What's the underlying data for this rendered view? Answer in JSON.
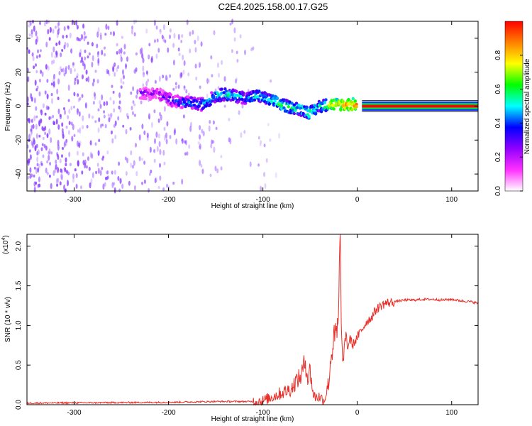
{
  "title": "C2E4.2025.158.00.17.G25",
  "chart_data": [
    {
      "type": "heatmap",
      "xlabel": "Height of straight line (km)",
      "ylabel": "Frequency (Hz)",
      "xlim": [
        -350,
        128
      ],
      "ylim": [
        -50,
        50
      ],
      "xticks": [
        -300,
        -200,
        -100,
        0,
        100
      ],
      "yticks": [
        -40,
        -20,
        0,
        20,
        40
      ],
      "grid": false,
      "colorbar": {
        "label": "Normalized spectral amplitude",
        "ticks": [
          0.0,
          0.2,
          0.4,
          0.6,
          0.8
        ],
        "range": [
          0,
          1
        ],
        "colormap": [
          "#ffffff",
          "#ff30ff",
          "#9000ff",
          "#0000ff",
          "#00ffff",
          "#00ff00",
          "#ffff00",
          "#ff8000",
          "#ff0000"
        ]
      },
      "noise_band": {
        "x_range": [
          -350,
          -40
        ],
        "density": "decreasing toward 0 km",
        "color": "#8a3cff"
      },
      "signal_track": [
        {
          "x": -230,
          "y": 8,
          "amp": 0.22
        },
        {
          "x": -210,
          "y": 7,
          "amp": 0.25
        },
        {
          "x": -195,
          "y": 3,
          "amp": 0.35
        },
        {
          "x": -180,
          "y": 2,
          "amp": 0.45
        },
        {
          "x": -165,
          "y": 1,
          "amp": 0.45
        },
        {
          "x": -150,
          "y": 6,
          "amp": 0.5
        },
        {
          "x": -140,
          "y": 7,
          "amp": 0.55
        },
        {
          "x": -120,
          "y": 5,
          "amp": 0.45
        },
        {
          "x": -105,
          "y": 6,
          "amp": 0.5
        },
        {
          "x": -95,
          "y": 4,
          "amp": 0.5
        },
        {
          "x": -85,
          "y": 2,
          "amp": 0.6
        },
        {
          "x": -75,
          "y": 0,
          "amp": 0.6
        },
        {
          "x": -60,
          "y": -2,
          "amp": 0.55
        },
        {
          "x": -50,
          "y": -4,
          "amp": 0.6
        },
        {
          "x": -40,
          "y": 0,
          "amp": 0.5
        },
        {
          "x": -30,
          "y": 1,
          "amp": 0.7
        },
        {
          "x": -15,
          "y": 1,
          "amp": 0.8
        },
        {
          "x": 0,
          "y": 1,
          "amp": 0.85
        }
      ],
      "steady_tone": {
        "x_range": [
          5,
          128
        ],
        "y": 0,
        "amp": 1.0
      }
    },
    {
      "type": "line",
      "xlabel": "Height of straight line (km)",
      "ylabel": "SNR (10 * v/v)",
      "multiplier_label": "(x10",
      "multiplier_exponent": "4",
      "multiplier_close": ")",
      "xlim": [
        -350,
        128
      ],
      "ylim": [
        0,
        2.15
      ],
      "xticks": [
        -300,
        -200,
        -100,
        0,
        100
      ],
      "yticks": [
        0.0,
        0.5,
        1.0,
        1.5,
        2.0
      ],
      "color": "#e8302a",
      "grid": false,
      "series": [
        {
          "x": [
            -350,
            -200,
            -150,
            -110,
            -100,
            -90,
            -80,
            -70,
            -65,
            -60,
            -55,
            -52,
            -50,
            -47,
            -45,
            -40,
            -35,
            -30,
            -28,
            -25,
            -22,
            -20,
            -18,
            -17,
            -16,
            -15,
            -12,
            -10,
            -8,
            -5,
            0,
            5,
            10,
            15,
            20,
            25,
            30,
            40,
            50,
            60,
            70,
            80,
            90,
            100,
            110,
            120,
            128
          ],
          "y": [
            0.02,
            0.03,
            0.04,
            0.04,
            0.05,
            0.1,
            0.15,
            0.2,
            0.3,
            0.35,
            0.55,
            0.3,
            0.45,
            0.15,
            0.1,
            0.1,
            0.05,
            0.3,
            0.6,
            0.8,
            0.9,
            1.0,
            2.15,
            1.0,
            0.6,
            0.55,
            0.9,
            0.7,
            0.85,
            0.75,
            0.85,
            0.95,
            1.05,
            1.1,
            1.2,
            1.25,
            1.28,
            1.3,
            1.32,
            1.32,
            1.33,
            1.33,
            1.32,
            1.33,
            1.31,
            1.3,
            1.28
          ]
        }
      ]
    }
  ]
}
